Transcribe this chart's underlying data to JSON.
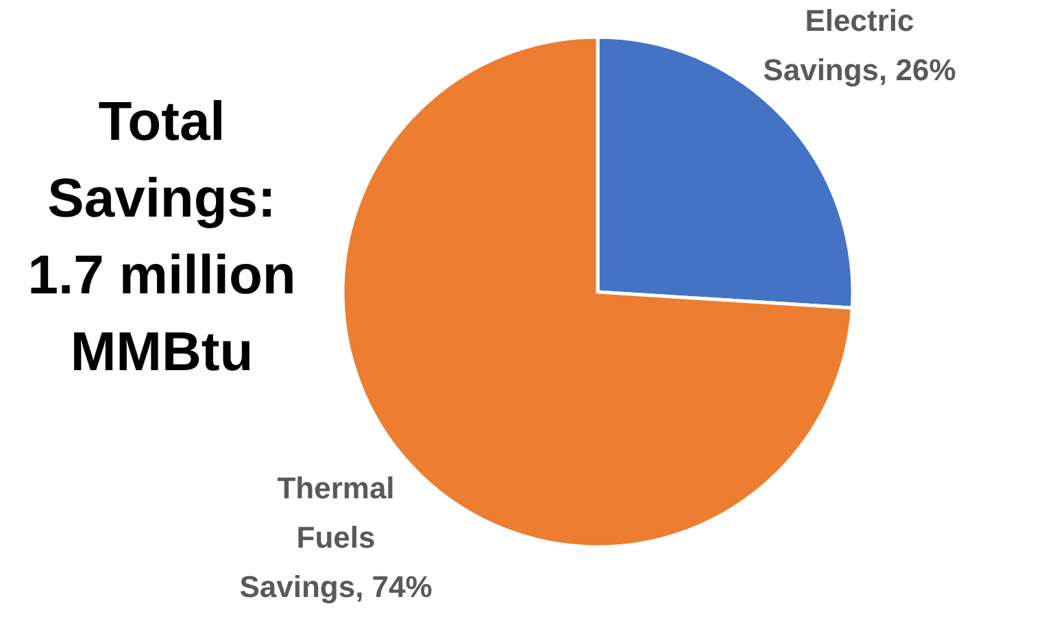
{
  "chart_data": {
    "type": "pie",
    "title": "Total Savings: 1.7 million MMBtu",
    "categories": [
      "Electric Savings",
      "Thermal Fuels Savings"
    ],
    "values": [
      26,
      74
    ],
    "colors": [
      "#4472c4",
      "#ed7d31"
    ],
    "value_labels": [
      "26%",
      "74%"
    ]
  }
}
